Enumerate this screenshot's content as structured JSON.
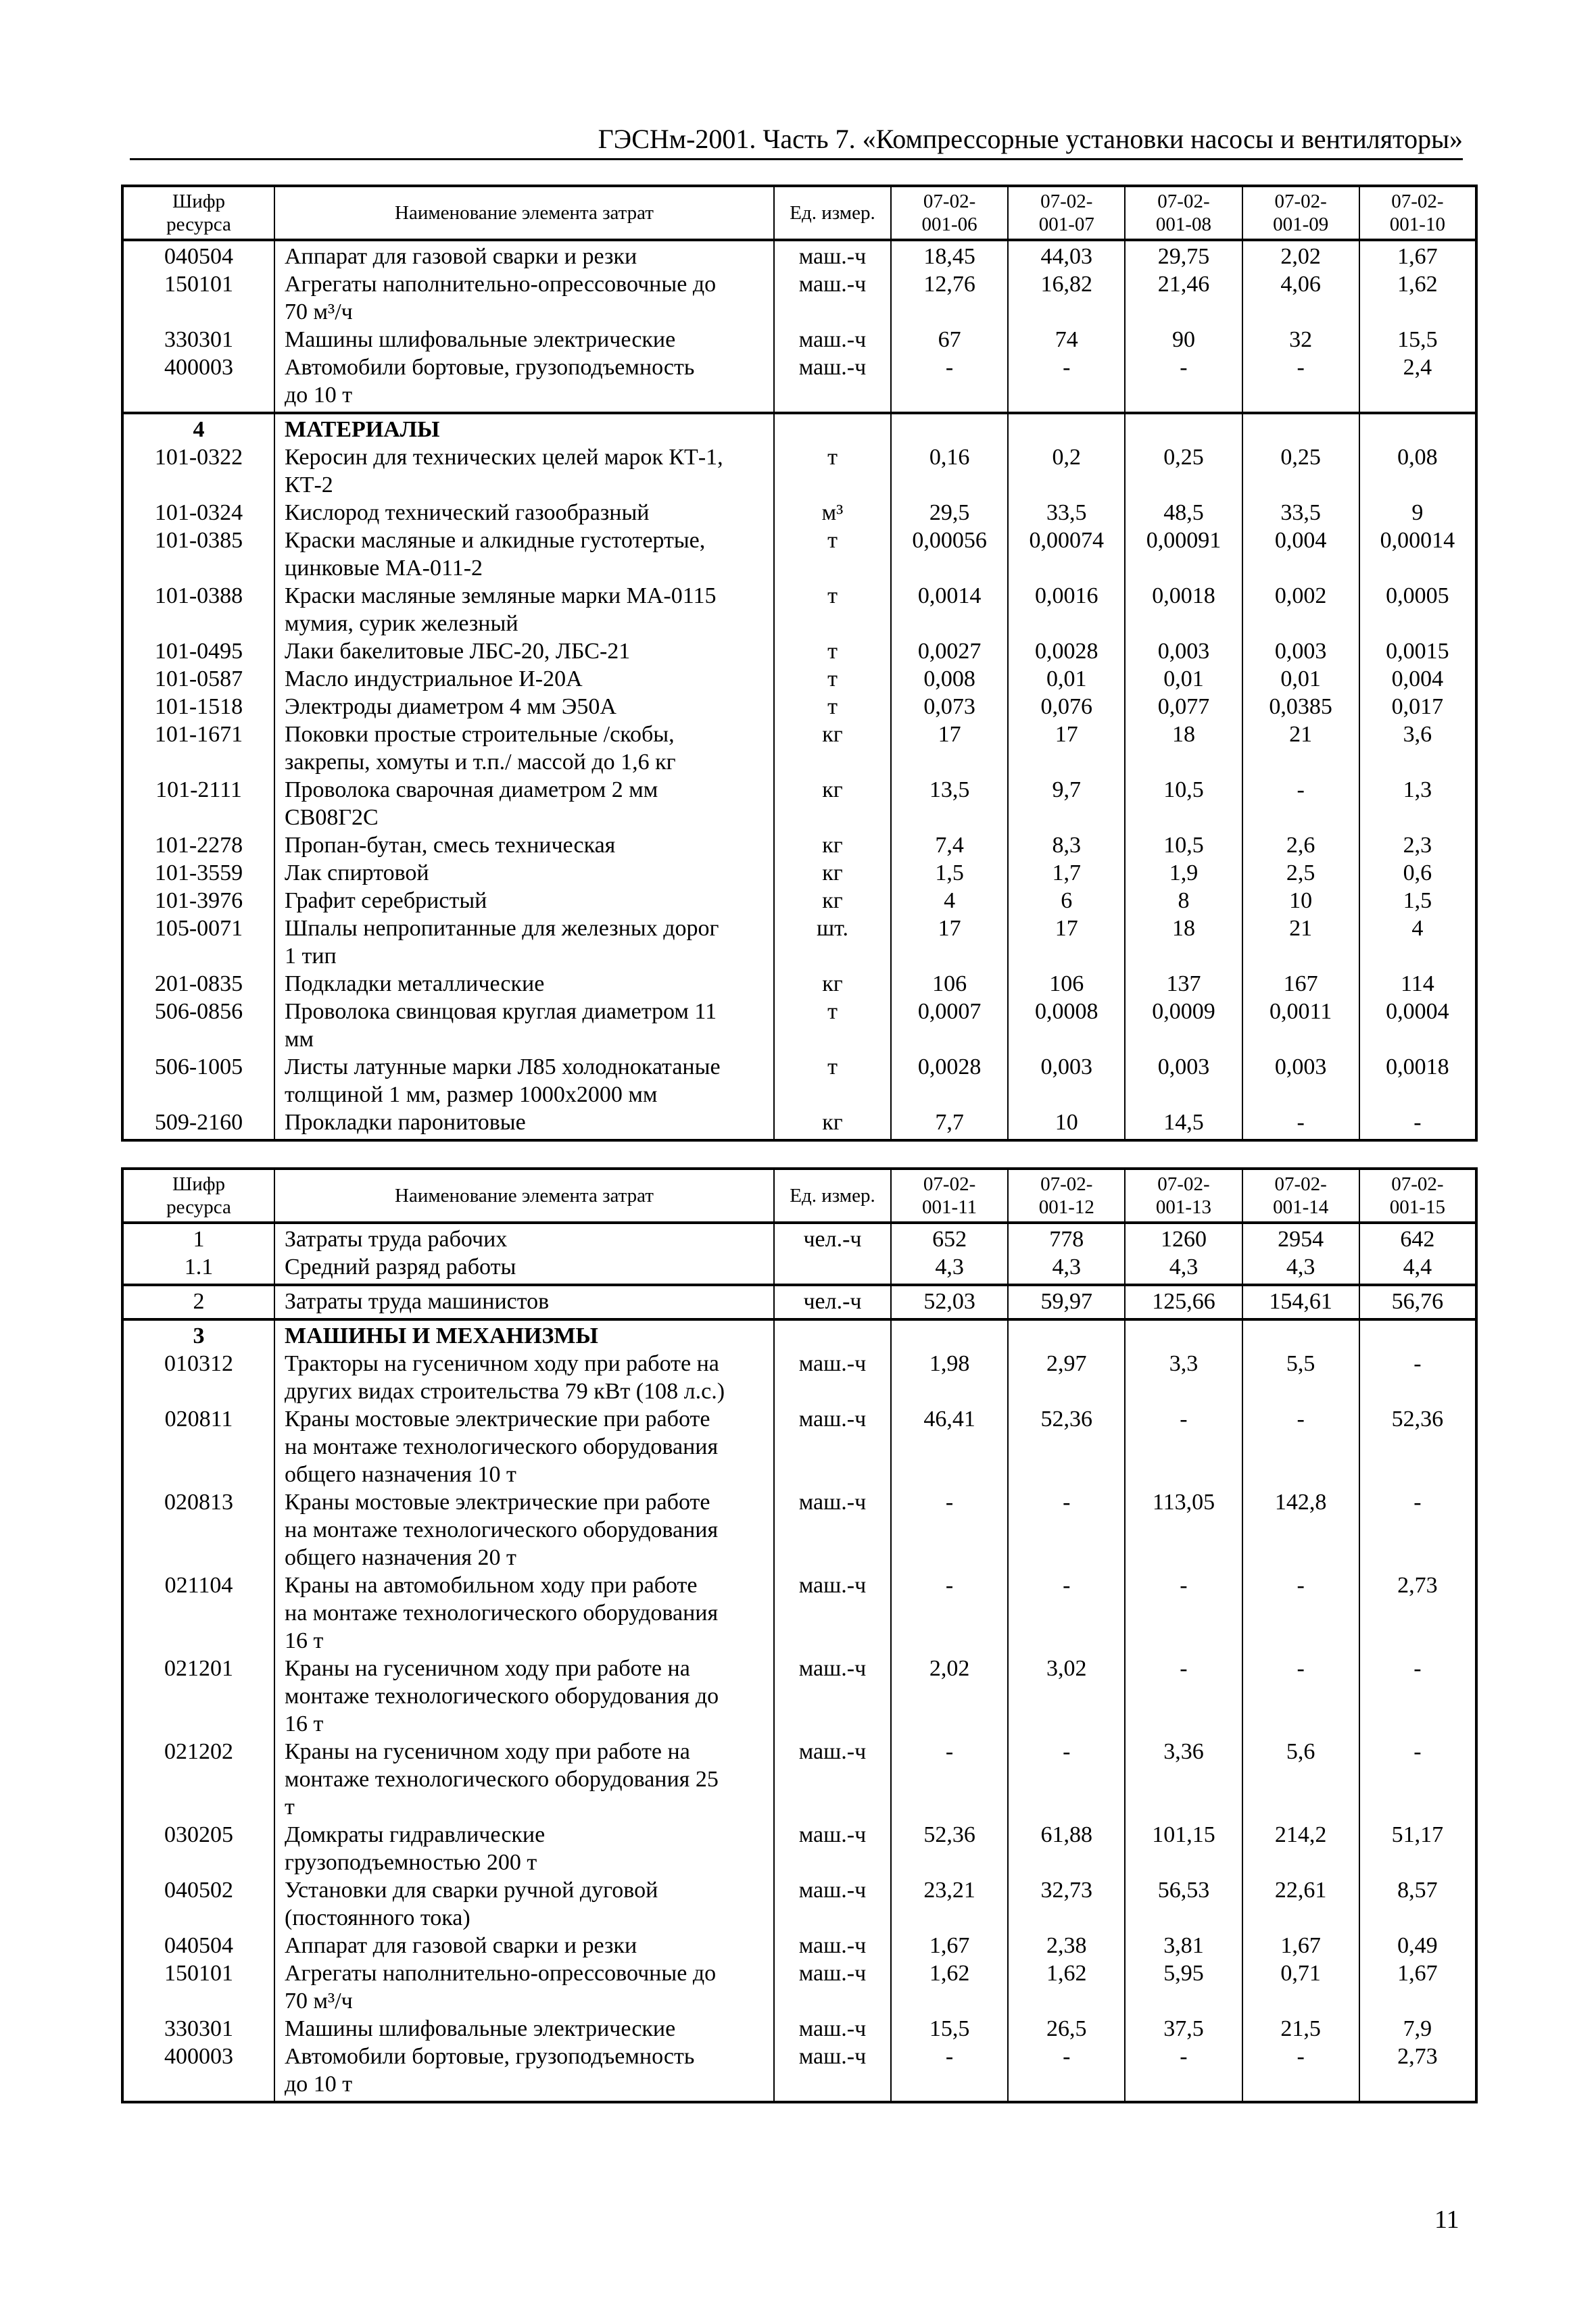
{
  "running_head": "ГЭСНм-2001. Часть 7. «Компрессорные установки насосы и вентиляторы»",
  "page_number": "11",
  "tables": [
    {
      "header": {
        "code": "Шифр\nресурса",
        "name": "Наименование элемента затрат",
        "unit": "Ед. измер.",
        "cols": [
          "07-02-\n001-06",
          "07-02-\n001-07",
          "07-02-\n001-08",
          "07-02-\n001-09",
          "07-02-\n001-10"
        ]
      },
      "groups": [
        [
          {
            "code": "040504",
            "name": "Аппарат для газовой сварки и резки",
            "unit": "маш.-ч",
            "values": [
              "18,45",
              "44,03",
              "29,75",
              "2,02",
              "1,67"
            ]
          },
          {
            "code": "150101",
            "name": "Агрегаты наполнительно-опрессовочные до\n70 м³/ч",
            "unit": "маш.-ч",
            "values": [
              "12,76",
              "16,82",
              "21,46",
              "4,06",
              "1,62"
            ]
          },
          {
            "code": "330301",
            "name": "Машины шлифовальные электрические",
            "unit": "маш.-ч",
            "values": [
              "67",
              "74",
              "90",
              "32",
              "15,5"
            ]
          },
          {
            "code": "400003",
            "name": "Автомобили бортовые, грузоподъемность\nдо 10 т",
            "unit": "маш.-ч",
            "values": [
              "-",
              "-",
              "-",
              "-",
              "2,4"
            ]
          }
        ],
        [
          {
            "code": "4",
            "name": "МАТЕРИАЛЫ",
            "unit": "",
            "values": [
              "",
              "",
              "",
              "",
              ""
            ],
            "section": true
          },
          {
            "code": "101-0322",
            "name": "Керосин для технических целей марок КТ-1,\nКТ-2",
            "unit": "т",
            "values": [
              "0,16",
              "0,2",
              "0,25",
              "0,25",
              "0,08"
            ]
          },
          {
            "code": "101-0324",
            "name": "Кислород технический газообразный",
            "unit": "м³",
            "values": [
              "29,5",
              "33,5",
              "48,5",
              "33,5",
              "9"
            ]
          },
          {
            "code": "101-0385",
            "name": "Краски масляные и алкидные густотертые,\nцинковые МА-011-2",
            "unit": "т",
            "values": [
              "0,00056",
              "0,00074",
              "0,00091",
              "0,004",
              "0,00014"
            ]
          },
          {
            "code": "101-0388",
            "name": "Краски масляные земляные марки МА-0115\nмумия, сурик железный",
            "unit": "т",
            "values": [
              "0,0014",
              "0,0016",
              "0,0018",
              "0,002",
              "0,0005"
            ]
          },
          {
            "code": "101-0495",
            "name": "Лаки бакелитовые ЛБС-20, ЛБС-21",
            "unit": "т",
            "values": [
              "0,0027",
              "0,0028",
              "0,003",
              "0,003",
              "0,0015"
            ]
          },
          {
            "code": "101-0587",
            "name": "Масло индустриальное И-20А",
            "unit": "т",
            "values": [
              "0,008",
              "0,01",
              "0,01",
              "0,01",
              "0,004"
            ]
          },
          {
            "code": "101-1518",
            "name": "Электроды диаметром 4 мм Э50А",
            "unit": "т",
            "values": [
              "0,073",
              "0,076",
              "0,077",
              "0,0385",
              "0,017"
            ]
          },
          {
            "code": "101-1671",
            "name": "Поковки простые строительные /скобы,\nзакрепы, хомуты и т.п./ массой до 1,6 кг",
            "unit": "кг",
            "values": [
              "17",
              "17",
              "18",
              "21",
              "3,6"
            ]
          },
          {
            "code": "101-2111",
            "name": "Проволока сварочная диаметром 2 мм\nСВ08Г2С",
            "unit": "кг",
            "values": [
              "13,5",
              "9,7",
              "10,5",
              "-",
              "1,3"
            ]
          },
          {
            "code": "101-2278",
            "name": "Пропан-бутан, смесь техническая",
            "unit": "кг",
            "values": [
              "7,4",
              "8,3",
              "10,5",
              "2,6",
              "2,3"
            ]
          },
          {
            "code": "101-3559",
            "name": "Лак спиртовой",
            "unit": "кг",
            "values": [
              "1,5",
              "1,7",
              "1,9",
              "2,5",
              "0,6"
            ]
          },
          {
            "code": "101-3976",
            "name": "Графит серебристый",
            "unit": "кг",
            "values": [
              "4",
              "6",
              "8",
              "10",
              "1,5"
            ]
          },
          {
            "code": "105-0071",
            "name": "Шпалы непропитанные для железных дорог\n1 тип",
            "unit": "шт.",
            "values": [
              "17",
              "17",
              "18",
              "21",
              "4"
            ]
          },
          {
            "code": "201-0835",
            "name": "Подкладки металлические",
            "unit": "кг",
            "values": [
              "106",
              "106",
              "137",
              "167",
              "114"
            ]
          },
          {
            "code": "506-0856",
            "name": "Проволока свинцовая круглая диаметром 11\nмм",
            "unit": "т",
            "values": [
              "0,0007",
              "0,0008",
              "0,0009",
              "0,0011",
              "0,0004"
            ]
          },
          {
            "code": "506-1005",
            "name": "Листы латунные марки Л85 холоднокатаные\nтолщиной 1 мм, размер 1000х2000 мм",
            "unit": "т",
            "values": [
              "0,0028",
              "0,003",
              "0,003",
              "0,003",
              "0,0018"
            ]
          },
          {
            "code": "509-2160",
            "name": "Прокладки паронитовые",
            "unit": "кг",
            "values": [
              "7,7",
              "10",
              "14,5",
              "-",
              "-"
            ]
          }
        ]
      ]
    },
    {
      "header": {
        "code": "Шифр\nресурса",
        "name": "Наименование элемента затрат",
        "unit": "Ед. измер.",
        "cols": [
          "07-02-\n001-11",
          "07-02-\n001-12",
          "07-02-\n001-13",
          "07-02-\n001-14",
          "07-02-\n001-15"
        ]
      },
      "groups": [
        [
          {
            "code": "1",
            "name": "Затраты труда рабочих",
            "unit": "чел.-ч",
            "values": [
              "652",
              "778",
              "1260",
              "2954",
              "642"
            ]
          },
          {
            "code": "1.1",
            "name": "Средний разряд работы",
            "unit": "",
            "values": [
              "4,3",
              "4,3",
              "4,3",
              "4,3",
              "4,4"
            ]
          }
        ],
        [
          {
            "code": "2",
            "name": "Затраты труда машинистов",
            "unit": "чел.-ч",
            "values": [
              "52,03",
              "59,97",
              "125,66",
              "154,61",
              "56,76"
            ]
          }
        ],
        [
          {
            "code": "3",
            "name": "МАШИНЫ И МЕХАНИЗМЫ",
            "unit": "",
            "values": [
              "",
              "",
              "",
              "",
              ""
            ],
            "section": true
          },
          {
            "code": "010312",
            "name": "Тракторы на гусеничном ходу при работе на\nдругих видах строительства 79 кВт (108 л.с.)",
            "unit": "маш.-ч",
            "values": [
              "1,98",
              "2,97",
              "3,3",
              "5,5",
              "-"
            ]
          },
          {
            "code": "020811",
            "name": "Краны мостовые электрические при работе\nна монтаже технологического оборудования\nобщего назначения 10 т",
            "unit": "маш.-ч",
            "values": [
              "46,41",
              "52,36",
              "-",
              "-",
              "52,36"
            ]
          },
          {
            "code": "020813",
            "name": "Краны мостовые электрические при работе\nна монтаже технологического оборудования\nобщего назначения 20 т",
            "unit": "маш.-ч",
            "values": [
              "-",
              "-",
              "113,05",
              "142,8",
              "-"
            ]
          },
          {
            "code": "021104",
            "name": "Краны на автомобильном ходу при работе\nна монтаже технологического оборудования\n16 т",
            "unit": "маш.-ч",
            "values": [
              "-",
              "-",
              "-",
              "-",
              "2,73"
            ]
          },
          {
            "code": "021201",
            "name": "Краны на гусеничном ходу при работе на\nмонтаже технологического оборудования до\n16 т",
            "unit": "маш.-ч",
            "values": [
              "2,02",
              "3,02",
              "-",
              "-",
              "-"
            ]
          },
          {
            "code": "021202",
            "name": "Краны на гусеничном ходу при работе на\nмонтаже технологического оборудования 25\nт",
            "unit": "маш.-ч",
            "values": [
              "-",
              "-",
              "3,36",
              "5,6",
              "-"
            ]
          },
          {
            "code": "030205",
            "name": "Домкраты гидравлические\nгрузоподъемностью 200 т",
            "unit": "маш.-ч",
            "values": [
              "52,36",
              "61,88",
              "101,15",
              "214,2",
              "51,17"
            ]
          },
          {
            "code": "040502",
            "name": "Установки для сварки ручной дуговой\n(постоянного тока)",
            "unit": "маш.-ч",
            "values": [
              "23,21",
              "32,73",
              "56,53",
              "22,61",
              "8,57"
            ]
          },
          {
            "code": "040504",
            "name": "Аппарат для газовой сварки и резки",
            "unit": "маш.-ч",
            "values": [
              "1,67",
              "2,38",
              "3,81",
              "1,67",
              "0,49"
            ]
          },
          {
            "code": "150101",
            "name": "Агрегаты наполнительно-опрессовочные до\n70 м³/ч",
            "unit": "маш.-ч",
            "values": [
              "1,62",
              "1,62",
              "5,95",
              "0,71",
              "1,67"
            ]
          },
          {
            "code": "330301",
            "name": "Машины шлифовальные электрические",
            "unit": "маш.-ч",
            "values": [
              "15,5",
              "26,5",
              "37,5",
              "21,5",
              "7,9"
            ]
          },
          {
            "code": "400003",
            "name": "Автомобили бортовые, грузоподъемность\nдо 10 т",
            "unit": "маш.-ч",
            "values": [
              "-",
              "-",
              "-",
              "-",
              "2,73"
            ]
          }
        ]
      ]
    }
  ]
}
